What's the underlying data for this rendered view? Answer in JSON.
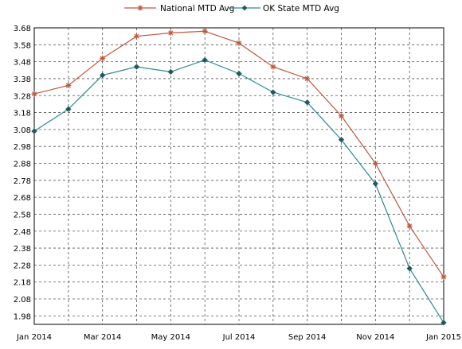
{
  "chart_data": {
    "type": "line",
    "x": [
      "Jan 2014",
      "Feb 2014",
      "Mar 2014",
      "Apr 2014",
      "May 2014",
      "Jun 2014",
      "Jul 2014",
      "Aug 2014",
      "Sep 2014",
      "Oct 2014",
      "Nov 2014",
      "Dec 2014",
      "Jan 2015"
    ],
    "x_tick_labels": [
      "Jan 2014",
      "Mar 2014",
      "May 2014",
      "Jul 2014",
      "Sep 2014",
      "Nov 2014",
      "Jan 2015"
    ],
    "y_tick_labels": [
      "3.68",
      "3.58",
      "3.48",
      "3.38",
      "3.28",
      "3.18",
      "3.08",
      "2.98",
      "2.88",
      "2.78",
      "2.68",
      "2.58",
      "2.48",
      "2.38",
      "2.28",
      "2.18",
      "2.08",
      "1.98"
    ],
    "ylim": [
      1.93,
      3.68
    ],
    "grid": true,
    "legend_position": "top-center",
    "series": [
      {
        "name": "National MTD Avg",
        "color": "#c0583f",
        "marker": "asterisk",
        "values": [
          3.29,
          3.34,
          3.5,
          3.63,
          3.65,
          3.66,
          3.59,
          3.45,
          3.38,
          3.16,
          2.88,
          2.51,
          2.21
        ]
      },
      {
        "name": "OK State MTD Avg",
        "color": "#2a8a92",
        "marker": "diamond",
        "values": [
          3.07,
          3.2,
          3.4,
          3.45,
          3.42,
          3.49,
          3.41,
          3.3,
          3.24,
          3.02,
          2.76,
          2.26,
          1.94
        ]
      }
    ]
  }
}
